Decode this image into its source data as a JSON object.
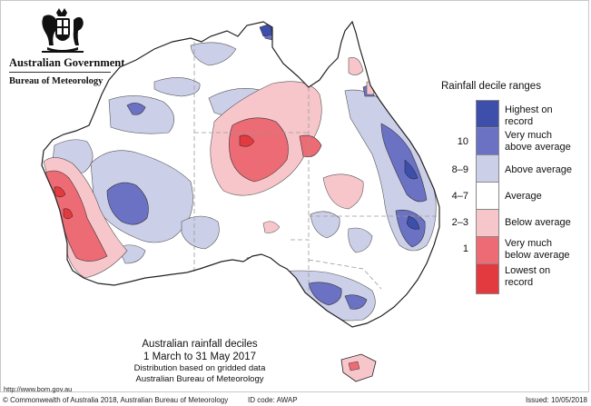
{
  "header": {
    "government_name": "Australian Government",
    "bureau_name": "Bureau of Meteorology"
  },
  "legend": {
    "title": "Rainfall decile ranges",
    "items": [
      {
        "label": "Highest on\nrecord",
        "decile": "",
        "color": "#3d4faa"
      },
      {
        "label": "Very much\nabove average",
        "decile": "10",
        "color": "#6b72c4"
      },
      {
        "label": "Above average",
        "decile": "8–9",
        "color": "#cccfe8"
      },
      {
        "label": "Average",
        "decile": "4–7",
        "color": "#ffffff"
      },
      {
        "label": "Below average",
        "decile": "2–3",
        "color": "#f7c6cb"
      },
      {
        "label": "Very much\nbelow average",
        "decile": "1",
        "color": "#ec6b74"
      },
      {
        "label": "Lowest on\nrecord",
        "decile": "",
        "color": "#e23a3f"
      }
    ]
  },
  "caption": {
    "title": "Australian rainfall deciles",
    "period": "1 March to 31 May 2017",
    "distribution": "Distribution based on gridded data",
    "bureau": "Australian Bureau of Meteorology"
  },
  "url": "http://www.bom.gov.au",
  "footer": {
    "copyright": "© Commonwealth of Australia 2018, Australian Bureau of Meteorology",
    "id_code": "ID code: AWAP",
    "issued": "Issued: 10/05/2018"
  },
  "colors": {
    "highest": "#3d4faa",
    "very_much_above": "#6b72c4",
    "above": "#cccfe8",
    "average": "#ffffff",
    "below": "#f7c6cb",
    "very_much_below": "#ec6b74",
    "lowest": "#e23a3f",
    "coastline": "#222222",
    "state_borders": "#9a9a9a"
  }
}
